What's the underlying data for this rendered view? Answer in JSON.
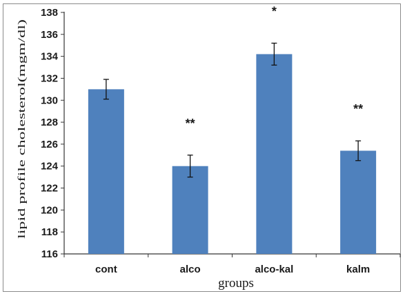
{
  "chart_data": {
    "type": "bar",
    "categories": [
      "cont",
      "alco",
      "alco-kal",
      "kalm"
    ],
    "values": [
      131.0,
      124.0,
      134.2,
      125.4
    ],
    "errors": [
      0.9,
      1.0,
      1.0,
      0.9
    ],
    "significance": [
      "",
      "**",
      "*",
      "**"
    ],
    "xlabel": "groups",
    "ylabel": "lipid profile cholesterol(mgm/dl)",
    "ylim": [
      116,
      138
    ],
    "ytick_step": 2,
    "bar_color": "#4f81bd",
    "grid": false,
    "legend": false
  }
}
